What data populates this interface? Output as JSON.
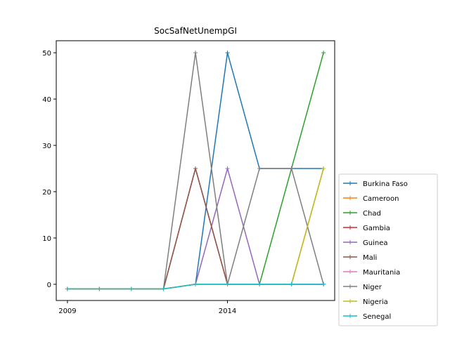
{
  "chart_data": {
    "type": "line",
    "title": "SocSafNetUnempGI",
    "xlabel": "",
    "ylabel": "",
    "x": [
      2009,
      2010,
      2011,
      2012,
      2013,
      2014,
      2015,
      2016,
      2017
    ],
    "xlim": [
      2008.65,
      2017.35
    ],
    "ylim": [
      -3.5,
      52.6
    ],
    "xticks": [
      2009,
      2014
    ],
    "yticks": [
      0,
      10,
      20,
      30,
      40,
      50
    ],
    "grid": false,
    "legend_position": "right",
    "series": [
      {
        "name": "Burkina Faso",
        "color": "#1f77b4",
        "values": [
          -1,
          -1,
          -1,
          -1,
          0,
          50,
          25,
          25,
          25
        ]
      },
      {
        "name": "Cameroon",
        "color": "#ff7f0e",
        "values": [
          -1,
          -1,
          -1,
          -1,
          0,
          0,
          0,
          0,
          25
        ]
      },
      {
        "name": "Chad",
        "color": "#2ca02c",
        "values": [
          -1,
          -1,
          -1,
          -1,
          0,
          0,
          0,
          25,
          50
        ]
      },
      {
        "name": "Gambia",
        "color": "#d62728",
        "values": [
          -1,
          -1,
          -1,
          -1,
          25,
          0,
          0,
          0,
          0
        ]
      },
      {
        "name": "Guinea",
        "color": "#9467bd",
        "values": [
          -1,
          -1,
          -1,
          -1,
          0,
          25,
          0,
          0,
          0
        ]
      },
      {
        "name": "Mali",
        "color": "#8c564b",
        "values": [
          -1,
          -1,
          -1,
          -1,
          25,
          0,
          0,
          0,
          0
        ]
      },
      {
        "name": "Mauritania",
        "color": "#e377c2",
        "values": [
          -1,
          -1,
          -1,
          -1,
          0,
          0,
          0,
          0,
          0
        ]
      },
      {
        "name": "Niger",
        "color": "#7f7f7f",
        "values": [
          -1,
          -1,
          -1,
          -1,
          50,
          0,
          25,
          25,
          0
        ]
      },
      {
        "name": "Nigeria",
        "color": "#bcbd22",
        "values": [
          -1,
          -1,
          -1,
          -1,
          0,
          0,
          0,
          0,
          25
        ]
      },
      {
        "name": "Senegal",
        "color": "#17becf",
        "values": [
          -1,
          -1,
          -1,
          -1,
          0,
          0,
          0,
          0,
          0
        ]
      }
    ]
  }
}
